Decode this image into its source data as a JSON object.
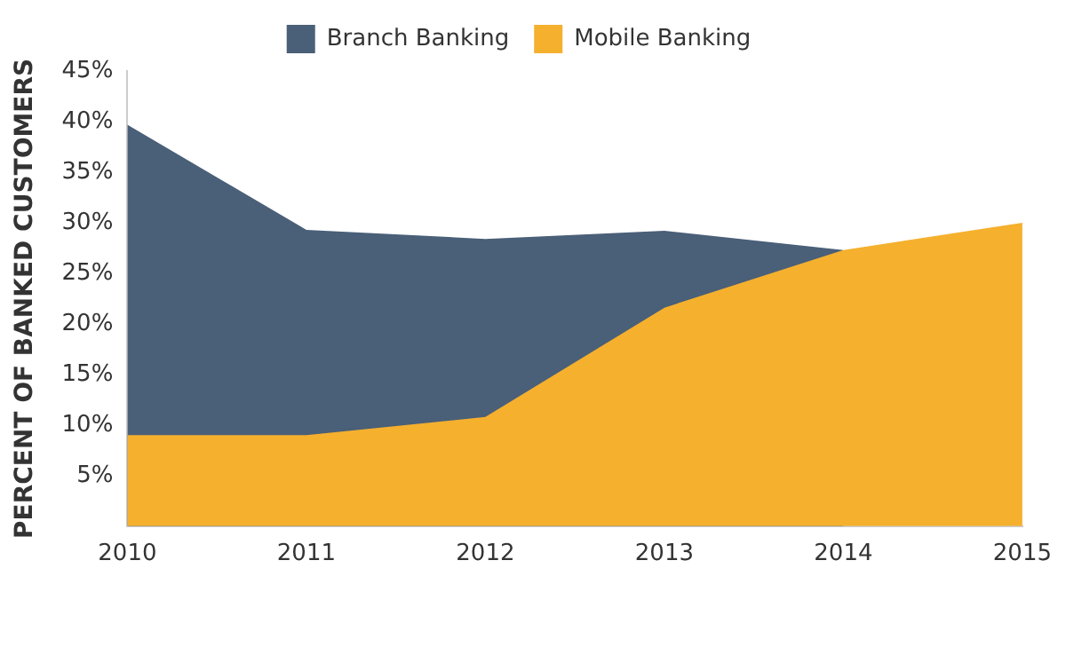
{
  "chart_data": {
    "type": "area",
    "ylabel": "PERCENT OF BANKED CUSTOMERS",
    "categories": [
      "2010",
      "2011",
      "2012",
      "2013",
      "2014",
      "2015"
    ],
    "series": [
      {
        "name": "Branch Banking",
        "color": "#4a5f78",
        "values": [
          39.7,
          29.3,
          28.4,
          29.2,
          27.3,
          null
        ]
      },
      {
        "name": "Mobile Banking",
        "color": "#f5b02e",
        "values": [
          9,
          9,
          10.8,
          21.6,
          27.3,
          30
        ]
      }
    ],
    "ylim": [
      0,
      45
    ],
    "yticks": [
      {
        "value": 0,
        "label": null
      },
      {
        "value": 5,
        "label": "5%"
      },
      {
        "value": 10,
        "label": "10%"
      },
      {
        "value": 15,
        "label": "15%"
      },
      {
        "value": 20,
        "label": "20%"
      },
      {
        "value": 25,
        "label": "25%"
      },
      {
        "value": 30,
        "label": "30%"
      },
      {
        "value": 35,
        "label": "35%"
      },
      {
        "value": 40,
        "label": "40%"
      },
      {
        "value": 45,
        "label": "45%"
      }
    ],
    "grid": false,
    "legend": "top"
  }
}
